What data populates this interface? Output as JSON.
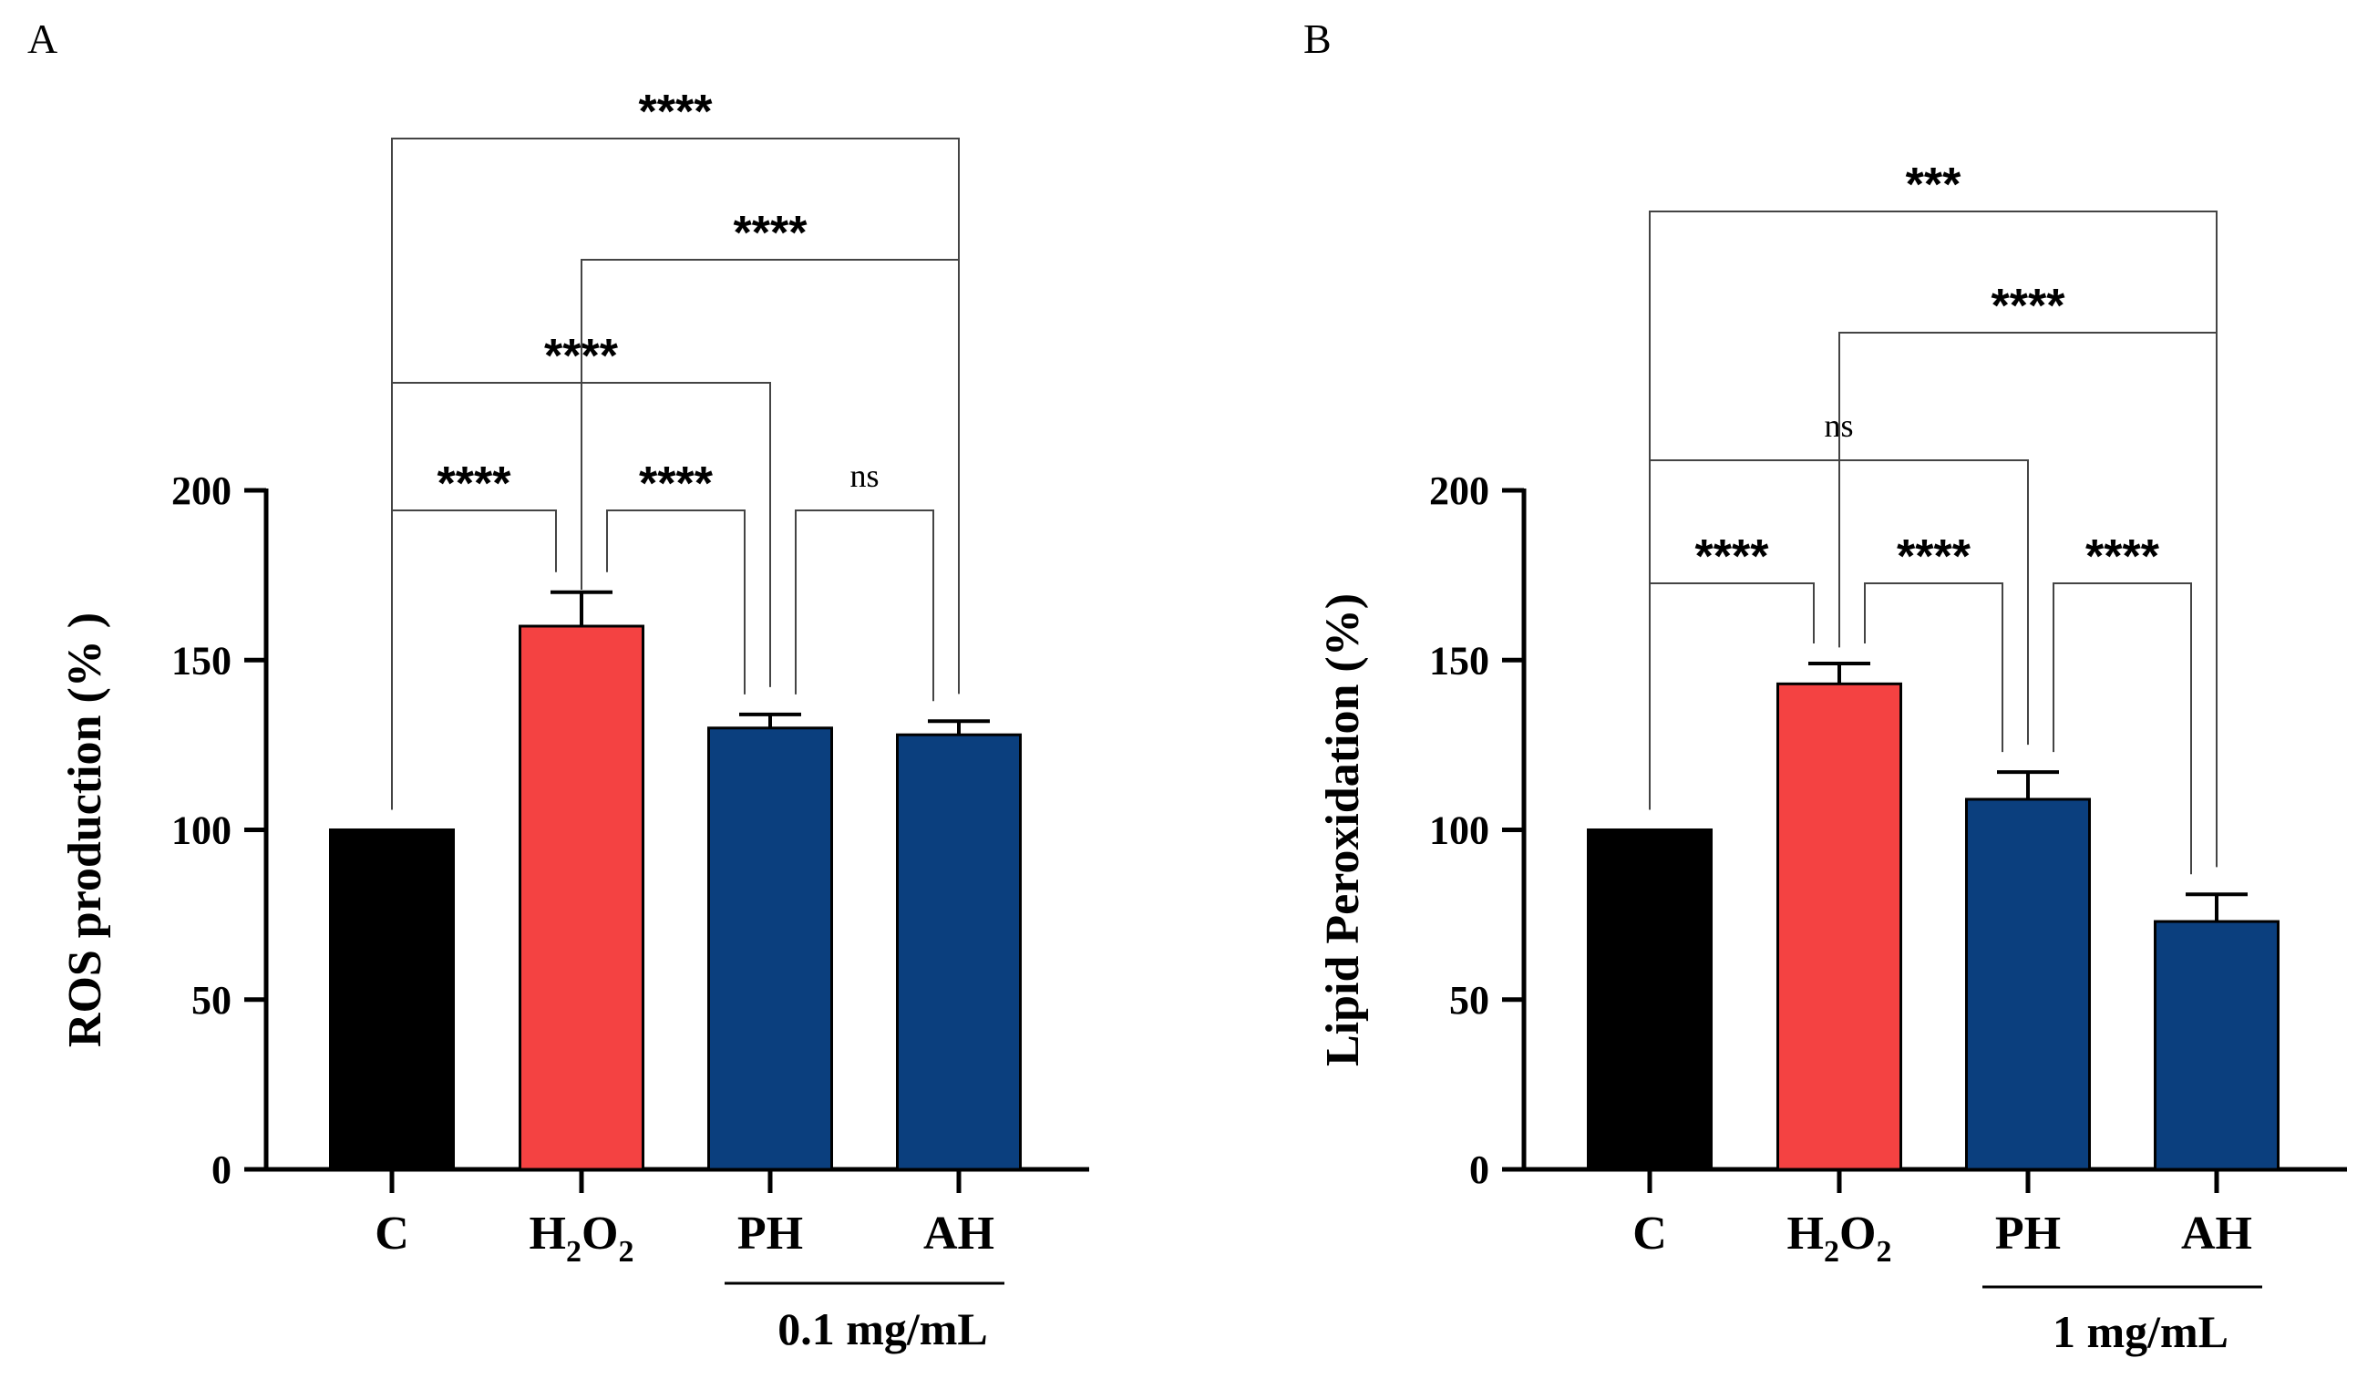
{
  "chart_data": [
    {
      "panel": "A",
      "type": "bar",
      "title": "",
      "xlabel": "",
      "ylabel": "ROS production (% )",
      "ylim": [
        0,
        200
      ],
      "yticks": [
        0,
        50,
        100,
        150,
        200
      ],
      "categories": [
        {
          "main": "C",
          "sub1": "",
          "mid": "",
          "sub2": ""
        },
        {
          "main": "H",
          "sub1": "2",
          "mid": "O",
          "sub2": "2"
        },
        {
          "main": "PH",
          "sub1": "",
          "mid": "",
          "sub2": ""
        },
        {
          "main": "AH",
          "sub1": "",
          "mid": "",
          "sub2": ""
        }
      ],
      "values": [
        100,
        160,
        130,
        128
      ],
      "errors": [
        0,
        10,
        4,
        4
      ],
      "colors": [
        "#000000",
        "#f44242",
        "#0b3f7e",
        "#0b3f7e"
      ],
      "group_label": "0.1 mg/mL",
      "group_span": [
        2,
        3
      ],
      "comparisons": [
        {
          "from": 0,
          "to": 1,
          "label": "****"
        },
        {
          "from": 1,
          "to": 2,
          "label": "****"
        },
        {
          "from": 2,
          "to": 3,
          "label": "ns"
        },
        {
          "from": 0,
          "to": 2,
          "label": "****"
        },
        {
          "from": 1,
          "to": 3,
          "label": "****"
        },
        {
          "from": 0,
          "to": 3,
          "label": "****"
        }
      ]
    },
    {
      "panel": "B",
      "type": "bar",
      "title": "",
      "xlabel": "",
      "ylabel": "Lipid Peroxidation (%)",
      "ylim": [
        0,
        200
      ],
      "yticks": [
        0,
        50,
        100,
        150,
        200
      ],
      "categories": [
        {
          "main": "C",
          "sub1": "",
          "mid": "",
          "sub2": ""
        },
        {
          "main": "H",
          "sub1": "2",
          "mid": "O",
          "sub2": "2"
        },
        {
          "main": "PH",
          "sub1": "",
          "mid": "",
          "sub2": ""
        },
        {
          "main": "AH",
          "sub1": "",
          "mid": "",
          "sub2": ""
        }
      ],
      "values": [
        100,
        143,
        109,
        73
      ],
      "errors": [
        0,
        6,
        8,
        8
      ],
      "colors": [
        "#000000",
        "#f44242",
        "#0b3f7e",
        "#0b3f7e"
      ],
      "group_label": "1 mg/mL",
      "group_span": [
        2,
        3
      ],
      "comparisons": [
        {
          "from": 0,
          "to": 1,
          "label": "****"
        },
        {
          "from": 1,
          "to": 2,
          "label": "****"
        },
        {
          "from": 2,
          "to": 3,
          "label": "****"
        },
        {
          "from": 0,
          "to": 2,
          "label": "ns"
        },
        {
          "from": 1,
          "to": 3,
          "label": "****"
        },
        {
          "from": 0,
          "to": 3,
          "label": "***"
        }
      ]
    }
  ]
}
